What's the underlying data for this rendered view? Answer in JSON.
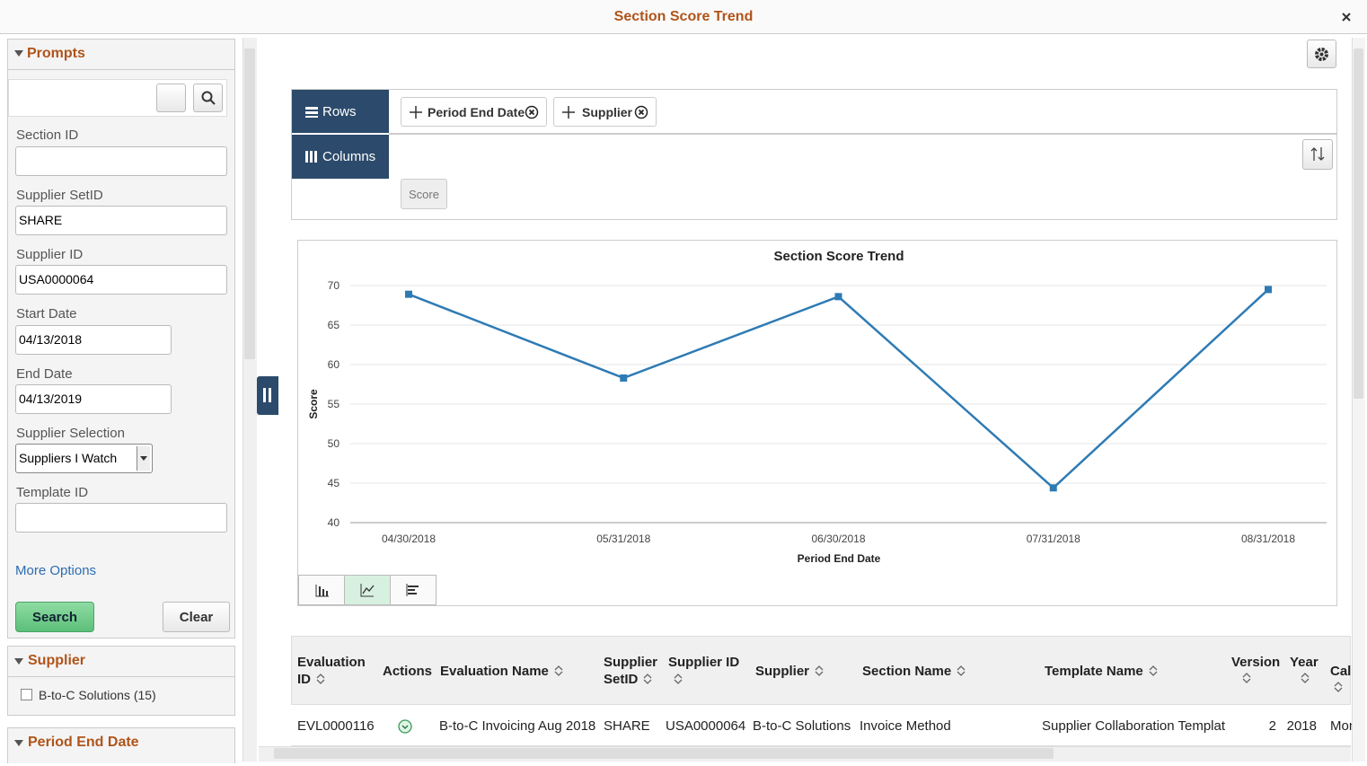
{
  "window_title": "Section Score Trend",
  "prompts": {
    "heading": "Prompts",
    "section_id_label": "Section ID",
    "setid_label": "Supplier SetID",
    "setid_value": "SHARE",
    "supplier_id_label": "Supplier ID",
    "supplier_id_value": "USA0000064",
    "start_label": "Start Date",
    "start_value": "04/13/2018",
    "end_label": "End Date",
    "end_value": "04/13/2019",
    "selection_label": "Supplier Selection",
    "selection_value": "Suppliers I Watch",
    "template_label": "Template ID",
    "more_options": "More Options",
    "search": "Search",
    "clear": "Clear"
  },
  "facets": [
    {
      "heading": "Supplier",
      "items": [
        "B-to-C Solutions (15)"
      ]
    },
    {
      "heading": "Period End Date"
    }
  ],
  "pivot": {
    "rows_label": "Rows",
    "columns_label": "Columns",
    "row_fields": [
      "Period End Date",
      "Supplier"
    ],
    "value_fields": [
      "Score"
    ]
  },
  "chart_data": {
    "type": "line",
    "title": "Section Score Trend",
    "x_label": "Period End Date",
    "y_label": "Score",
    "categories": [
      "04/30/2018",
      "05/31/2018",
      "06/30/2018",
      "07/31/2018",
      "08/31/2018"
    ],
    "values": [
      68.9,
      58.3,
      68.6,
      44.4,
      69.5
    ],
    "color": "#2e7bb4",
    "ylim": [
      40,
      70
    ],
    "yticks": [
      40,
      45,
      50,
      55,
      60,
      65,
      70
    ],
    "grid": true
  },
  "table": {
    "headers": [
      "Evaluation ID",
      "Actions",
      "Evaluation Name",
      "Supplier SetID",
      "Supplier ID",
      "Supplier",
      "Section Name",
      "Template Name",
      "Version",
      "Year",
      "Cal"
    ],
    "rows": [
      [
        "EVL0000116",
        null,
        "B-to-C Invoicing Aug 2018",
        "SHARE",
        "USA0000064",
        "B-to-C Solutions",
        "Invoice Method",
        "Supplier Collaboration Templat",
        2,
        2018,
        "Mon"
      ]
    ]
  }
}
